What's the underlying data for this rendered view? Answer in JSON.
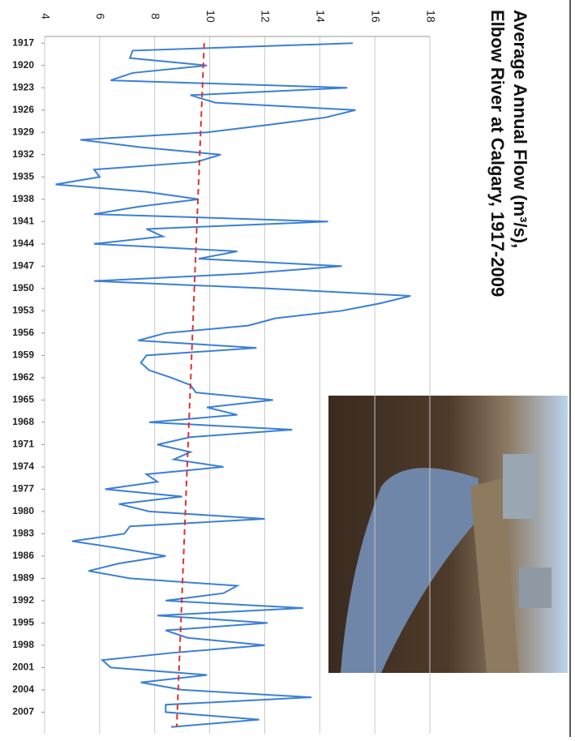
{
  "chart_data": {
    "type": "line",
    "title": [
      "Average Annual Flow (m³/s),",
      "Elbow River at Calgary, 1917-2009"
    ],
    "orientation": "rotated",
    "x": [
      1917,
      1918,
      1919,
      1920,
      1921,
      1922,
      1923,
      1924,
      1925,
      1926,
      1927,
      1928,
      1929,
      1930,
      1931,
      1932,
      1933,
      1934,
      1935,
      1936,
      1937,
      1938,
      1939,
      1940,
      1941,
      1942,
      1943,
      1944,
      1945,
      1946,
      1947,
      1948,
      1949,
      1950,
      1951,
      1952,
      1953,
      1954,
      1955,
      1956,
      1957,
      1958,
      1959,
      1960,
      1961,
      1962,
      1963,
      1964,
      1965,
      1966,
      1967,
      1968,
      1969,
      1970,
      1971,
      1972,
      1973,
      1974,
      1975,
      1976,
      1977,
      1978,
      1979,
      1980,
      1981,
      1982,
      1983,
      1984,
      1985,
      1986,
      1987,
      1988,
      1989,
      1990,
      1991,
      1992,
      1993,
      1994,
      1995,
      1996,
      1997,
      1998,
      1999,
      2000,
      2001,
      2002,
      2003,
      2004,
      2005,
      2006,
      2007,
      2008,
      2009
    ],
    "series": [
      {
        "color": "#3a7fd5",
        "values": [
          15.2,
          7.2,
          7.1,
          9.9,
          7.2,
          6.4,
          15.0,
          9.3,
          10.2,
          15.3,
          14.2,
          12.1,
          9.9,
          5.3,
          7.5,
          10.4,
          9.5,
          5.8,
          6.0,
          4.4,
          7.7,
          9.6,
          7.4,
          5.8,
          14.3,
          7.7,
          8.3,
          5.8,
          11.0,
          9.6,
          14.8,
          11.3,
          5.8,
          12.1,
          17.3,
          16.2,
          14.8,
          12.4,
          11.4,
          8.4,
          7.4,
          11.7,
          7.7,
          7.5,
          7.8,
          8.6,
          9.3,
          9.5,
          12.3,
          9.9,
          11.0,
          7.8,
          13.0,
          9.3,
          8.1,
          9.3,
          8.7,
          10.5,
          7.7,
          8.1,
          6.2,
          9.0,
          6.7,
          7.8,
          12.0,
          7.1,
          6.9,
          5.0,
          6.8,
          8.4,
          6.7,
          5.6,
          7.1,
          11.0,
          10.5,
          8.4,
          13.4,
          8.1,
          12.1,
          8.4,
          9.2,
          12.0,
          8.7,
          6.1,
          6.4,
          9.9,
          7.5,
          9.0,
          13.7,
          8.4,
          8.4,
          11.8,
          8.6
        ]
      }
    ],
    "trend": {
      "color": "#e03030",
      "start": 9.8,
      "end": 8.8
    },
    "xlim": [
      1916.1,
      2009.9
    ],
    "xticks": [
      1917,
      1920,
      1923,
      1926,
      1929,
      1932,
      1935,
      1938,
      1941,
      1944,
      1947,
      1950,
      1953,
      1956,
      1959,
      1962,
      1965,
      1968,
      1971,
      1974,
      1977,
      1980,
      1983,
      1986,
      1989,
      1992,
      1995,
      1998,
      2001,
      2004,
      2007
    ],
    "ylim": [
      4,
      18
    ],
    "yticks": [
      4,
      6,
      8,
      10,
      12,
      14,
      16,
      18
    ],
    "grid": true
  }
}
